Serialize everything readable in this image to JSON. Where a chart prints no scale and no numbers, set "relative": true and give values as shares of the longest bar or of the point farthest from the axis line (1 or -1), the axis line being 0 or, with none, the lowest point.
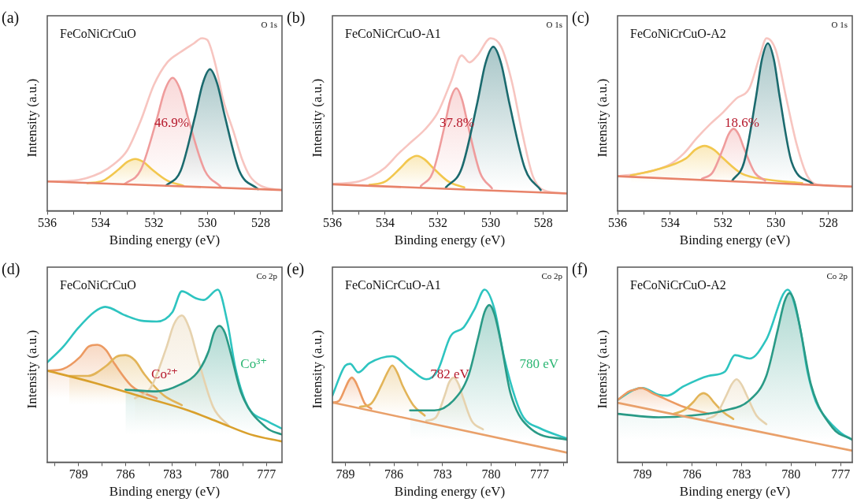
{
  "chart_data": [
    {
      "type": "line",
      "title": "FeCoNiCrCuO",
      "xlabel": "Binding energy (eV)",
      "ylabel": "Intensity (a.u.)",
      "relative": true,
      "marker": "none",
      "tick_labels": "x",
      "xlim": [
        536,
        527.2
      ],
      "xticks": [
        536,
        {
          "value": 535,
          "label": null
        },
        534,
        {
          "value": 533,
          "label": null
        },
        532,
        {
          "value": 531,
          "label": null
        },
        530,
        {
          "value": 529,
          "label": null
        },
        528
      ],
      "annotations": [
        "(a)",
        "O 1s",
        "46.9%"
      ],
      "series": [
        {
          "type": "line",
          "color": "#f7c5c0",
          "x": [
            536,
            535,
            534,
            533.5,
            533,
            532.5,
            532,
            531.5,
            531,
            530.5,
            530.2,
            530,
            529.7,
            529.4,
            529,
            528.7,
            528.4,
            528,
            527.5,
            527.2
          ],
          "values": [
            0.17,
            0.175,
            0.22,
            0.27,
            0.35,
            0.52,
            0.73,
            0.86,
            0.92,
            0.97,
            1.0,
            0.99,
            0.85,
            0.64,
            0.45,
            0.3,
            0.2,
            0.145,
            0.125,
            0.12
          ]
        },
        {
          "type": "area",
          "color": "#f2c74e",
          "x": [
            534.5,
            533.9,
            533.3,
            533.0,
            532.7,
            532.4,
            532.1,
            531.5,
            530.9
          ],
          "values": [
            0.16,
            0.175,
            0.243,
            0.283,
            0.3,
            0.283,
            0.243,
            0.175,
            0.145
          ]
        },
        {
          "type": "area",
          "color": "#ef9c9c",
          "x": [
            533.1,
            532.5,
            531.9,
            531.6,
            531.3,
            531.0,
            530.7,
            530.1,
            529.5
          ],
          "values": [
            0.155,
            0.235,
            0.527,
            0.695,
            0.77,
            0.695,
            0.527,
            0.235,
            0.14
          ]
        },
        {
          "type": "area",
          "color": "#1b6a6e",
          "x": [
            531.55,
            531.0,
            530.45,
            530.17,
            529.9,
            529.63,
            529.35,
            528.8,
            528.1
          ],
          "values": [
            0.145,
            0.231,
            0.553,
            0.738,
            0.82,
            0.738,
            0.553,
            0.231,
            0.125
          ]
        },
        {
          "type": "line",
          "color": "#e8836a",
          "x": [
            536,
            527.2
          ],
          "values": [
            0.17,
            0.12
          ]
        }
      ]
    },
    {
      "type": "line",
      "title": "FeCoNiCrCuO-A1",
      "xlabel": "Binding energy (eV)",
      "ylabel": "Intensity (a.u.)",
      "relative": true,
      "marker": "none",
      "tick_labels": "x",
      "xlim": [
        536,
        527.1
      ],
      "xticks": [
        536,
        {
          "value": 535,
          "label": null
        },
        534,
        {
          "value": 533,
          "label": null
        },
        532,
        {
          "value": 531,
          "label": null
        },
        530,
        {
          "value": 529,
          "label": null
        },
        528
      ],
      "annotations": [
        "(b)",
        "O 1s",
        "37.8%"
      ],
      "series": [
        {
          "type": "line",
          "color": "#f7c5c0",
          "x": [
            536,
            535,
            534.5,
            534,
            533.5,
            533,
            532.5,
            532,
            531.5,
            531.1,
            530.8,
            530.5,
            530,
            529.6,
            529.2,
            528.8,
            528.4,
            528,
            527.1
          ],
          "values": [
            0.155,
            0.17,
            0.2,
            0.25,
            0.33,
            0.4,
            0.47,
            0.57,
            0.75,
            0.9,
            0.86,
            0.9,
            1.0,
            0.95,
            0.75,
            0.45,
            0.2,
            0.12,
            0.1
          ]
        },
        {
          "type": "area",
          "color": "#f2c74e",
          "x": [
            534.6,
            534.0,
            533.4,
            533.1,
            532.8,
            532.5,
            532.2,
            531.6,
            531.0
          ],
          "values": [
            0.15,
            0.169,
            0.251,
            0.297,
            0.318,
            0.297,
            0.251,
            0.169,
            0.135
          ]
        },
        {
          "type": "area",
          "color": "#ef9c9c",
          "x": [
            532.65,
            532.2,
            531.75,
            531.53,
            531.3,
            531.08,
            530.85,
            530.4,
            529.95
          ],
          "values": [
            0.143,
            0.22,
            0.488,
            0.642,
            0.71,
            0.642,
            0.488,
            0.22,
            0.13
          ]
        },
        {
          "type": "area",
          "color": "#1b6a6e",
          "x": [
            531.7,
            531.1,
            530.5,
            530.2,
            529.9,
            529.6,
            529.3,
            528.7,
            528.1
          ],
          "values": [
            0.135,
            0.245,
            0.63,
            0.852,
            0.95,
            0.852,
            0.63,
            0.245,
            0.12
          ]
        },
        {
          "type": "line",
          "color": "#e8836a",
          "x": [
            536,
            527.1
          ],
          "values": [
            0.153,
            0.1
          ]
        }
      ]
    },
    {
      "type": "line",
      "title": "FeCoNiCrCuO-A2",
      "xlabel": "Binding energy (eV)",
      "ylabel": "Intensity (a.u.)",
      "relative": true,
      "marker": "none",
      "tick_labels": "x",
      "xlim": [
        536,
        527.1
      ],
      "xticks": [
        536,
        {
          "value": 535,
          "label": null
        },
        534,
        {
          "value": 533,
          "label": null
        },
        532,
        {
          "value": 531,
          "label": null
        },
        530,
        {
          "value": 529,
          "label": null
        },
        528
      ],
      "annotations": [
        "(c)",
        "O 1s",
        "18.6%"
      ],
      "series": [
        {
          "type": "line",
          "color": "#f7c5c0",
          "x": [
            536,
            535,
            534,
            533.5,
            533,
            532.5,
            532,
            531.5,
            531,
            530.6,
            530.35,
            530,
            529.6,
            529.2,
            528.8,
            528.4,
            527.1
          ],
          "values": [
            0.2,
            0.22,
            0.27,
            0.33,
            0.42,
            0.5,
            0.57,
            0.65,
            0.71,
            0.9,
            1.0,
            0.93,
            0.65,
            0.38,
            0.2,
            0.15,
            0.14
          ]
        },
        {
          "type": "area",
          "color": "#f2c74e",
          "x": [
            535.5,
            534.6,
            533.4,
            533.05,
            532.7,
            532.35,
            532.0,
            531.3,
            530.3,
            529
          ],
          "values": [
            0.205,
            0.235,
            0.304,
            0.354,
            0.376,
            0.354,
            0.304,
            0.216,
            0.18,
            0.16
          ]
        },
        {
          "type": "area",
          "color": "#ef9c9c",
          "x": [
            532.8,
            532.4,
            532.0,
            531.8,
            531.6,
            531.4,
            531.2,
            530.8,
            530.4
          ],
          "values": [
            0.185,
            0.221,
            0.36,
            0.44,
            0.475,
            0.44,
            0.36,
            0.221,
            0.175
          ]
        },
        {
          "type": "area",
          "color": "#1b6a6e",
          "x": [
            531.65,
            531.2,
            530.75,
            530.53,
            530.3,
            530.07,
            529.85,
            529.4,
            528.6
          ],
          "values": [
            0.175,
            0.282,
            0.658,
            0.874,
            0.97,
            0.874,
            0.658,
            0.282,
            0.155
          ]
        },
        {
          "type": "line",
          "color": "#e8836a",
          "x": [
            536,
            527.1
          ],
          "values": [
            0.2,
            0.14
          ]
        }
      ]
    },
    {
      "type": "line",
      "title": "FeCoNiCrCuO",
      "xlabel": "Binding energy (eV)",
      "ylabel": "Intensity (a.u.)",
      "relative": true,
      "marker": "none",
      "tick_labels": "x",
      "xlim": [
        791,
        776
      ],
      "xticks": [
        {
          "value": 790.5,
          "label": null
        },
        789,
        {
          "value": 787.5,
          "label": null
        },
        786,
        {
          "value": 784.5,
          "label": null
        },
        783,
        {
          "value": 781.5,
          "label": null
        },
        780,
        {
          "value": 778.5,
          "label": null
        },
        777
      ],
      "annotations": [
        "(d)",
        "Co 2p",
        "Co²⁺",
        "Co³⁺"
      ],
      "series": [
        {
          "type": "line",
          "color": "#2ec4c0",
          "x": [
            791,
            790,
            789,
            788,
            787.3,
            786,
            785,
            784,
            783,
            782.4,
            781.5,
            781,
            780.1,
            779.5,
            779,
            778.5,
            778,
            777,
            776
          ],
          "values": [
            0.578,
            0.667,
            0.78,
            0.87,
            0.9,
            0.85,
            0.82,
            0.815,
            0.87,
            0.99,
            0.95,
            0.94,
            1.0,
            0.815,
            0.556,
            0.39,
            0.296,
            0.24,
            0.194
          ]
        },
        {
          "type": "area",
          "color": "#ec9a62",
          "x": [
            791,
            790,
            788.9,
            788.35,
            787.8,
            787.25,
            786.7,
            785.6,
            784
          ],
          "values": [
            0.53,
            0.54,
            0.61,
            0.67,
            0.68,
            0.65,
            0.57,
            0.44,
            0.37
          ]
        },
        {
          "type": "area",
          "color": "#e2b458",
          "x": [
            789.6,
            788.4,
            787.2,
            786.6,
            786,
            785.4,
            784.8,
            783.6,
            782.4
          ],
          "values": [
            0.5,
            0.5,
            0.56,
            0.61,
            0.62,
            0.59,
            0.51,
            0.39,
            0.33
          ]
        },
        {
          "type": "area",
          "color": "#e6d2ae",
          "x": [
            785.4,
            784.4,
            783.4,
            782.9,
            782.4,
            781.9,
            781.4,
            780.4,
            779.4
          ],
          "values": [
            0.37,
            0.43,
            0.66,
            0.8,
            0.85,
            0.77,
            0.61,
            0.32,
            0.21
          ]
        },
        {
          "type": "area",
          "color": "#2a9a86",
          "x": [
            786,
            784,
            782.5,
            781.4,
            780.7,
            780.35,
            780,
            779.65,
            779.3,
            778.6,
            777,
            776
          ],
          "values": [
            0.42,
            0.41,
            0.45,
            0.52,
            0.64,
            0.75,
            0.79,
            0.75,
            0.64,
            0.4,
            0.2,
            0.16
          ]
        },
        {
          "type": "line",
          "color": "#d9a02c",
          "x": [
            791,
            788,
            785,
            782,
            780,
            778,
            776
          ],
          "values": [
            0.53,
            0.46,
            0.38,
            0.3,
            0.23,
            0.16,
            0.12
          ]
        }
      ]
    },
    {
      "type": "line",
      "title": "FeCoNiCrCuO-A1",
      "xlabel": "Binding energy (eV)",
      "ylabel": "Intensity (a.u.)",
      "relative": true,
      "marker": "none",
      "tick_labels": "x",
      "xlim": [
        789.8,
        775.3
      ],
      "xticks": [
        789,
        {
          "value": 787.5,
          "label": null
        },
        786,
        {
          "value": 784.5,
          "label": null
        },
        783,
        {
          "value": 781.5,
          "label": null
        },
        780,
        {
          "value": 778.5,
          "label": null
        },
        777,
        {
          "value": 775.5,
          "label": null
        }
      ],
      "annotations": [
        "(e)",
        "Co 2p",
        "782 eV",
        "780 eV"
      ],
      "series": [
        {
          "type": "line",
          "color": "#2ec4c0",
          "x": [
            789.8,
            789,
            788.7,
            788.2,
            787.5,
            786.1,
            785,
            784,
            783.3,
            782.5,
            781.7,
            781,
            780.4,
            779.8,
            779.2,
            778.5,
            778,
            777,
            775.3
          ],
          "values": [
            0.386,
            0.56,
            0.57,
            0.52,
            0.575,
            0.614,
            0.54,
            0.48,
            0.53,
            0.73,
            0.78,
            0.89,
            1.0,
            0.89,
            0.61,
            0.37,
            0.26,
            0.197,
            0.137
          ]
        },
        {
          "type": "area",
          "color": "#ec9a62",
          "x": [
            789.8,
            789.4,
            789.0,
            788.8,
            788.6,
            788.4,
            788.2,
            787.8,
            787.4
          ],
          "values": [
            0.345,
            0.355,
            0.43,
            0.47,
            0.49,
            0.47,
            0.43,
            0.34,
            0.31
          ]
        },
        {
          "type": "area",
          "color": "#e2b458",
          "x": [
            788.1,
            787.4,
            786.75,
            786.4,
            786.1,
            785.8,
            785.45,
            784.8,
            784.1
          ],
          "values": [
            0.32,
            0.34,
            0.45,
            0.52,
            0.56,
            0.52,
            0.44,
            0.33,
            0.27
          ]
        },
        {
          "type": "area",
          "color": "#e6d2ae",
          "x": [
            784,
            783.4,
            782.85,
            782.6,
            782.3,
            782.0,
            781.75,
            781.2,
            780.5
          ],
          "values": [
            0.24,
            0.26,
            0.39,
            0.46,
            0.49,
            0.45,
            0.38,
            0.24,
            0.19
          ]
        },
        {
          "type": "area",
          "color": "#2a9a86",
          "x": [
            785,
            783.5,
            782.3,
            781.4,
            780.8,
            780.4,
            780.1,
            779.8,
            779.4,
            778.8,
            777.5,
            775.3
          ],
          "values": [
            0.3,
            0.3,
            0.36,
            0.5,
            0.72,
            0.87,
            0.91,
            0.86,
            0.7,
            0.4,
            0.19,
            0.13
          ]
        },
        {
          "type": "line",
          "color": "#e9a06a",
          "x": [
            789.8,
            775.3
          ],
          "values": [
            0.346,
            0.055
          ]
        }
      ]
    },
    {
      "type": "line",
      "title": "FeCoNiCrCuO-A2",
      "xlabel": "Binding energy (eV)",
      "ylabel": "Intensity (a.u.)",
      "relative": true,
      "marker": "none",
      "tick_labels": "x",
      "xlim": [
        790.5,
        776.3
      ],
      "xticks": [
        789,
        {
          "value": 787.5,
          "label": null
        },
        786,
        {
          "value": 784.5,
          "label": null
        },
        783,
        {
          "value": 781.5,
          "label": null
        },
        780,
        {
          "value": 778.5,
          "label": null
        },
        777
      ],
      "annotations": [
        "(f)",
        "Co 2p"
      ],
      "series": [
        {
          "type": "line",
          "color": "#2ec4c0",
          "x": [
            790.5,
            789.5,
            789,
            788,
            787.5,
            786.5,
            785,
            784,
            783.4,
            782.5,
            781.5,
            780.2,
            779.5,
            779,
            778.5,
            778,
            777,
            776.3
          ],
          "values": [
            0.36,
            0.42,
            0.43,
            0.39,
            0.385,
            0.44,
            0.5,
            0.525,
            0.62,
            0.6,
            0.71,
            1.0,
            0.8,
            0.52,
            0.35,
            0.27,
            0.17,
            0.13
          ]
        },
        {
          "type": "area",
          "color": "#ec9a62",
          "x": [
            790.5,
            789.8,
            789.45,
            789.1,
            788.75,
            788.4,
            787.7,
            786.5,
            785
          ],
          "values": [
            0.36,
            0.41,
            0.42,
            0.43,
            0.42,
            0.4,
            0.37,
            0.32,
            0.28
          ]
        },
        {
          "type": "area",
          "color": "#e2b458",
          "x": [
            787.1,
            786.5,
            785.9,
            785.6,
            785.3,
            785.0,
            784.7,
            784.1,
            783.5
          ],
          "values": [
            0.28,
            0.3,
            0.35,
            0.385,
            0.4,
            0.385,
            0.35,
            0.29,
            0.25
          ]
        },
        {
          "type": "area",
          "color": "#e6d2ae",
          "x": [
            785.1,
            784.5,
            783.9,
            783.6,
            783.3,
            783.0,
            782.7,
            782.1,
            781.5
          ],
          "values": [
            0.25,
            0.28,
            0.39,
            0.45,
            0.48,
            0.45,
            0.39,
            0.27,
            0.22
          ]
        },
        {
          "type": "area",
          "color": "#2a9a86",
          "x": [
            790.5,
            788,
            786,
            784,
            782.5,
            781.5,
            780.8,
            780.4,
            780.1,
            779.8,
            779.4,
            778.8,
            777.5,
            776.3
          ],
          "values": [
            0.28,
            0.26,
            0.27,
            0.3,
            0.36,
            0.5,
            0.77,
            0.93,
            0.98,
            0.93,
            0.75,
            0.45,
            0.2,
            0.13
          ]
        },
        {
          "type": "line",
          "color": "#e9a06a",
          "x": [
            790.5,
            776.3
          ],
          "values": [
            0.344,
            0.066
          ]
        }
      ]
    }
  ]
}
